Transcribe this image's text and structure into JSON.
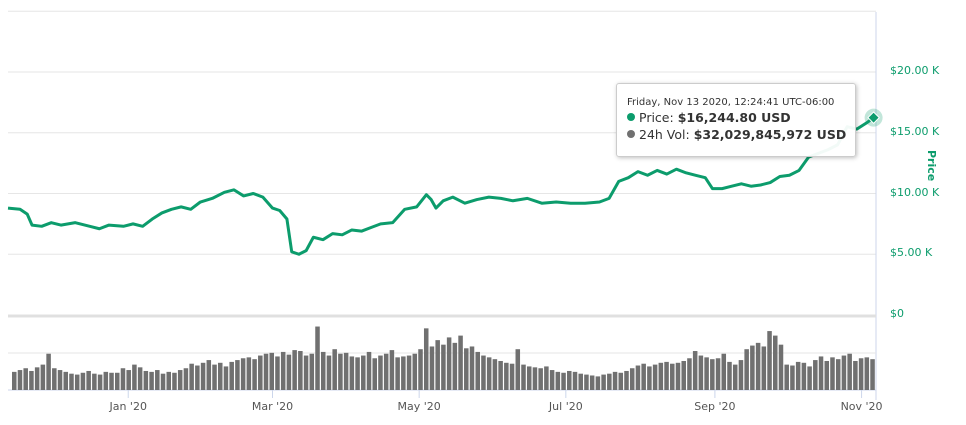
{
  "chart_data": {
    "type": "line",
    "title": "",
    "ylabel": "Price",
    "ylim": [
      0,
      25000
    ],
    "y_ticks": [
      "$0",
      "$5.00 K",
      "$10.00 K",
      "$15.00 K",
      "$20.00 K"
    ],
    "y_tick_values": [
      0,
      5000,
      10000,
      15000,
      20000
    ],
    "x_ticks": [
      "Jan '20",
      "Mar '20",
      "May '20",
      "Jul '20",
      "Sep '20",
      "Nov '20"
    ],
    "x_tick_days": [
      50,
      110,
      171,
      232,
      294,
      355
    ],
    "price_series": {
      "name": "Price",
      "color": "#0c9c6c",
      "points": [
        [
          0,
          8.8
        ],
        [
          5,
          8.7
        ],
        [
          8,
          8.3
        ],
        [
          10,
          7.4
        ],
        [
          14,
          7.3
        ],
        [
          18,
          7.6
        ],
        [
          22,
          7.4
        ],
        [
          28,
          7.6
        ],
        [
          34,
          7.3
        ],
        [
          38,
          7.1
        ],
        [
          42,
          7.4
        ],
        [
          48,
          7.3
        ],
        [
          52,
          7.5
        ],
        [
          56,
          7.3
        ],
        [
          60,
          7.9
        ],
        [
          64,
          8.4
        ],
        [
          68,
          8.7
        ],
        [
          72,
          8.9
        ],
        [
          76,
          8.7
        ],
        [
          80,
          9.3
        ],
        [
          85,
          9.6
        ],
        [
          90,
          10.1
        ],
        [
          94,
          10.3
        ],
        [
          98,
          9.8
        ],
        [
          102,
          10.0
        ],
        [
          106,
          9.7
        ],
        [
          110,
          8.8
        ],
        [
          113,
          8.6
        ],
        [
          116,
          7.9
        ],
        [
          118,
          5.2
        ],
        [
          121,
          5.0
        ],
        [
          124,
          5.3
        ],
        [
          127,
          6.4
        ],
        [
          131,
          6.2
        ],
        [
          135,
          6.7
        ],
        [
          139,
          6.6
        ],
        [
          143,
          7.0
        ],
        [
          147,
          6.9
        ],
        [
          151,
          7.2
        ],
        [
          155,
          7.5
        ],
        [
          160,
          7.6
        ],
        [
          165,
          8.7
        ],
        [
          170,
          8.9
        ],
        [
          174,
          9.9
        ],
        [
          176,
          9.5
        ],
        [
          178,
          8.8
        ],
        [
          181,
          9.4
        ],
        [
          185,
          9.7
        ],
        [
          190,
          9.2
        ],
        [
          195,
          9.5
        ],
        [
          200,
          9.7
        ],
        [
          205,
          9.6
        ],
        [
          210,
          9.4
        ],
        [
          216,
          9.6
        ],
        [
          222,
          9.2
        ],
        [
          228,
          9.3
        ],
        [
          234,
          9.2
        ],
        [
          240,
          9.2
        ],
        [
          246,
          9.3
        ],
        [
          250,
          9.6
        ],
        [
          254,
          11.0
        ],
        [
          258,
          11.3
        ],
        [
          262,
          11.8
        ],
        [
          266,
          11.5
        ],
        [
          270,
          11.9
        ],
        [
          274,
          11.6
        ],
        [
          278,
          12.0
        ],
        [
          282,
          11.7
        ],
        [
          286,
          11.5
        ],
        [
          290,
          11.3
        ],
        [
          293,
          10.4
        ],
        [
          297,
          10.4
        ],
        [
          301,
          10.6
        ],
        [
          305,
          10.8
        ],
        [
          309,
          10.6
        ],
        [
          313,
          10.7
        ],
        [
          317,
          10.9
        ],
        [
          321,
          11.4
        ],
        [
          325,
          11.5
        ],
        [
          329,
          11.9
        ],
        [
          333,
          13.0
        ],
        [
          337,
          13.3
        ],
        [
          341,
          13.6
        ],
        [
          345,
          14.0
        ],
        [
          349,
          15.5
        ],
        [
          353,
          15.3
        ],
        [
          357,
          15.8
        ],
        [
          360,
          16.24
        ]
      ]
    },
    "volume_series": {
      "name": "24h Vol",
      "unit": "USD billions",
      "color": "#707070",
      "values": [
        20,
        22,
        24,
        21,
        25,
        28,
        40,
        24,
        22,
        20,
        18,
        17,
        19,
        21,
        18,
        17,
        20,
        19,
        19,
        24,
        22,
        28,
        25,
        21,
        20,
        22,
        18,
        20,
        19,
        22,
        24,
        29,
        27,
        30,
        33,
        28,
        30,
        26,
        31,
        33,
        35,
        36,
        34,
        38,
        40,
        41,
        37,
        42,
        39,
        44,
        43,
        38,
        40,
        70,
        42,
        38,
        45,
        40,
        41,
        37,
        36,
        38,
        42,
        35,
        38,
        40,
        44,
        36,
        37,
        38,
        40,
        45,
        68,
        48,
        55,
        50,
        58,
        52,
        60,
        46,
        48,
        42,
        38,
        36,
        34,
        32,
        30,
        29,
        45,
        28,
        26,
        25,
        24,
        26,
        22,
        20,
        19,
        21,
        20,
        18,
        17,
        16,
        15,
        17,
        18,
        20,
        19,
        21,
        24,
        27,
        29,
        26,
        28,
        30,
        31,
        29,
        30,
        32,
        35,
        43,
        38,
        36,
        34,
        35,
        40,
        31,
        28,
        33,
        45,
        49,
        52,
        48,
        65,
        60,
        50,
        28,
        27,
        31,
        30,
        26,
        33,
        37,
        32,
        36,
        34,
        38,
        40,
        32,
        35,
        36,
        34
      ]
    }
  },
  "tooltip": {
    "datetime": "Friday, Nov 13 2020, 12:24:41 UTC-06:00",
    "price_label": "Price:",
    "price_value": "$16,244.80 USD",
    "vol_label": "24h Vol:",
    "vol_value": "$32,029,845,972 USD"
  }
}
